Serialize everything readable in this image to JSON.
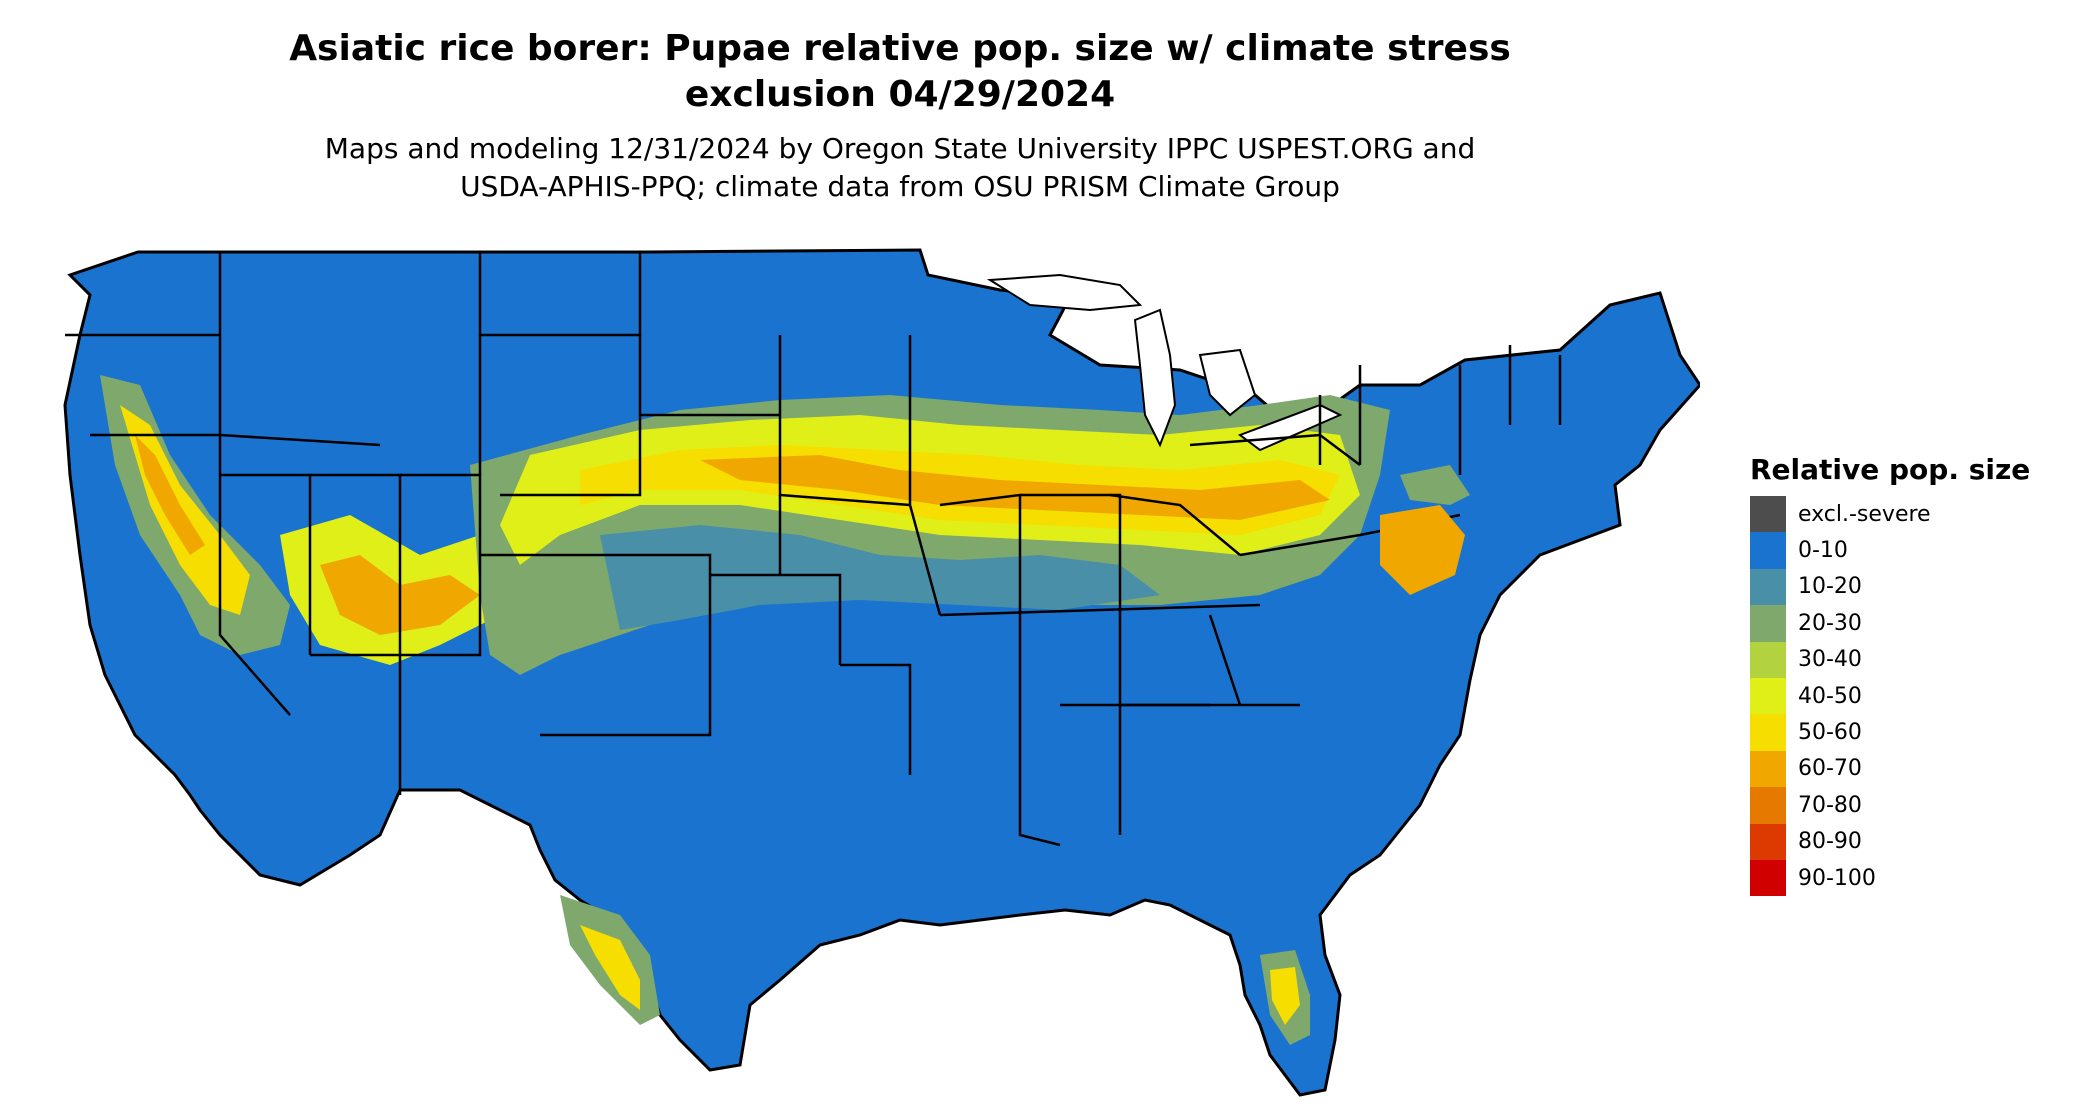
{
  "title_line1": "Asiatic rice borer: Pupae relative pop. size w/ climate stress",
  "title_line2": "exclusion 04/29/2024",
  "subtitle_line1": "Maps and modeling 12/31/2024 by Oregon State University IPPC USPEST.ORG and",
  "subtitle_line2": "USDA-APHIS-PPQ; climate data from OSU PRISM Climate Group",
  "legend": {
    "title": "Relative pop. size",
    "entries": [
      {
        "label": "excl.-severe",
        "color": "#4d4d4d"
      },
      {
        "label": "0-10",
        "color": "#1a73cf"
      },
      {
        "label": "10-20",
        "color": "#4a8fa8"
      },
      {
        "label": "20-30",
        "color": "#7ea86c"
      },
      {
        "label": "30-40",
        "color": "#b3d23f"
      },
      {
        "label": "40-50",
        "color": "#e1ef18"
      },
      {
        "label": "50-60",
        "color": "#f5de00"
      },
      {
        "label": "60-70",
        "color": "#f0a800"
      },
      {
        "label": "70-80",
        "color": "#e67a00"
      },
      {
        "label": "80-90",
        "color": "#dc3a00"
      },
      {
        "label": "90-100",
        "color": "#d00000"
      }
    ]
  }
}
